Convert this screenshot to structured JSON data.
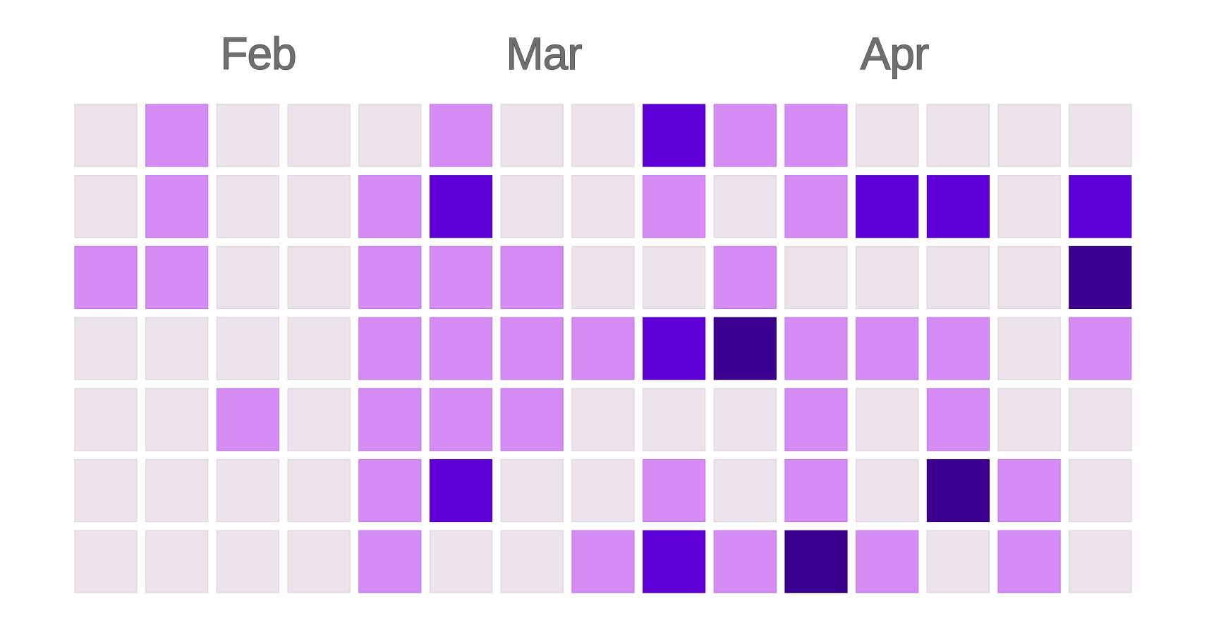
{
  "chart_data": {
    "type": "heatmap",
    "months": [
      "Feb",
      "Mar",
      "Apr"
    ],
    "colors": {
      "0": "#ece3ec",
      "1": "#d58df5",
      "2": "#5f00d8",
      "3": "#3b0090"
    },
    "stroke_colors": {
      "0": "#dcd3dc",
      "1": "#c27ae3",
      "2": "#4f00bc",
      "3": "#2e0070"
    },
    "grid": [
      [
        0,
        1,
        0,
        0,
        0,
        1,
        0,
        0,
        2,
        1,
        1,
        0,
        0,
        0,
        0
      ],
      [
        0,
        1,
        0,
        0,
        1,
        2,
        0,
        0,
        1,
        0,
        1,
        2,
        2,
        0,
        2
      ],
      [
        1,
        1,
        0,
        0,
        1,
        1,
        1,
        0,
        0,
        1,
        0,
        0,
        0,
        0,
        3
      ],
      [
        0,
        0,
        0,
        0,
        1,
        1,
        1,
        1,
        2,
        3,
        1,
        1,
        1,
        0,
        1
      ],
      [
        0,
        0,
        1,
        0,
        1,
        1,
        1,
        0,
        0,
        0,
        1,
        0,
        1,
        0,
        0
      ],
      [
        0,
        0,
        0,
        0,
        1,
        2,
        0,
        0,
        1,
        0,
        1,
        0,
        3,
        1,
        0
      ],
      [
        0,
        0,
        0,
        0,
        1,
        0,
        0,
        1,
        2,
        1,
        3,
        1,
        0,
        1,
        0
      ]
    ]
  }
}
